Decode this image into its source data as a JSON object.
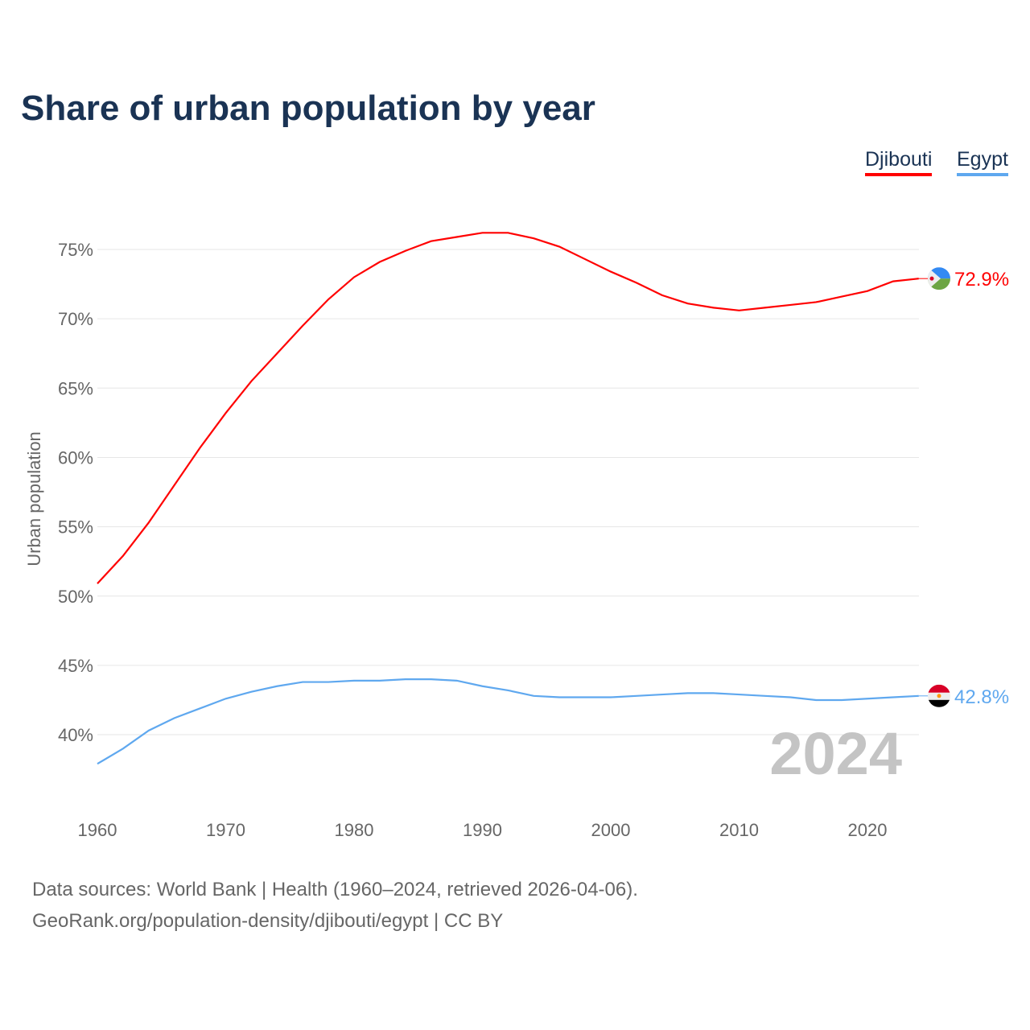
{
  "title": "Share of urban population by year",
  "year_watermark": "2024",
  "legend": [
    {
      "name": "Djibouti",
      "color": "#ff0000"
    },
    {
      "name": "Egypt",
      "color": "#5fa8ef"
    }
  ],
  "footer": {
    "line1": "Data sources: World Bank | Health (1960–2024, retrieved 2026-04-06).",
    "line2": "GeoRank.org/population-density/djibouti/egypt | CC BY"
  },
  "chart_data": {
    "type": "line",
    "title": "Share of urban population by year",
    "xlabel": "",
    "ylabel": "Urban population",
    "xlim": [
      1960,
      2024
    ],
    "ylim": [
      35,
      77
    ],
    "x_ticks": [
      1960,
      1970,
      1980,
      1990,
      2000,
      2010,
      2020
    ],
    "y_ticks": [
      40,
      45,
      50,
      55,
      60,
      65,
      70,
      75
    ],
    "y_tick_labels": [
      "40%",
      "45%",
      "50%",
      "55%",
      "60%",
      "65%",
      "70%",
      "75%"
    ],
    "x": [
      1960,
      1962,
      1964,
      1966,
      1968,
      1970,
      1972,
      1974,
      1976,
      1978,
      1980,
      1982,
      1984,
      1986,
      1988,
      1990,
      1992,
      1994,
      1996,
      1998,
      2000,
      2002,
      2004,
      2006,
      2008,
      2010,
      2012,
      2014,
      2016,
      2018,
      2020,
      2022,
      2024
    ],
    "series": [
      {
        "name": "Djibouti",
        "color": "#ff0000",
        "end_label": "72.9%",
        "values": [
          50.9,
          52.9,
          55.3,
          58.0,
          60.7,
          63.2,
          65.5,
          67.5,
          69.5,
          71.4,
          73.0,
          74.1,
          74.9,
          75.6,
          75.9,
          76.2,
          76.2,
          75.8,
          75.2,
          74.3,
          73.4,
          72.6,
          71.7,
          71.1,
          70.8,
          70.6,
          70.8,
          71.0,
          71.2,
          71.6,
          72.0,
          72.7,
          72.9
        ]
      },
      {
        "name": "Egypt",
        "color": "#5fa8ef",
        "end_label": "42.8%",
        "values": [
          37.9,
          39.0,
          40.3,
          41.2,
          41.9,
          42.6,
          43.1,
          43.5,
          43.8,
          43.8,
          43.9,
          43.9,
          44.0,
          44.0,
          43.9,
          43.5,
          43.2,
          42.8,
          42.7,
          42.7,
          42.7,
          42.8,
          42.9,
          43.0,
          43.0,
          42.9,
          42.8,
          42.7,
          42.5,
          42.5,
          42.6,
          42.7,
          42.8
        ]
      }
    ]
  }
}
